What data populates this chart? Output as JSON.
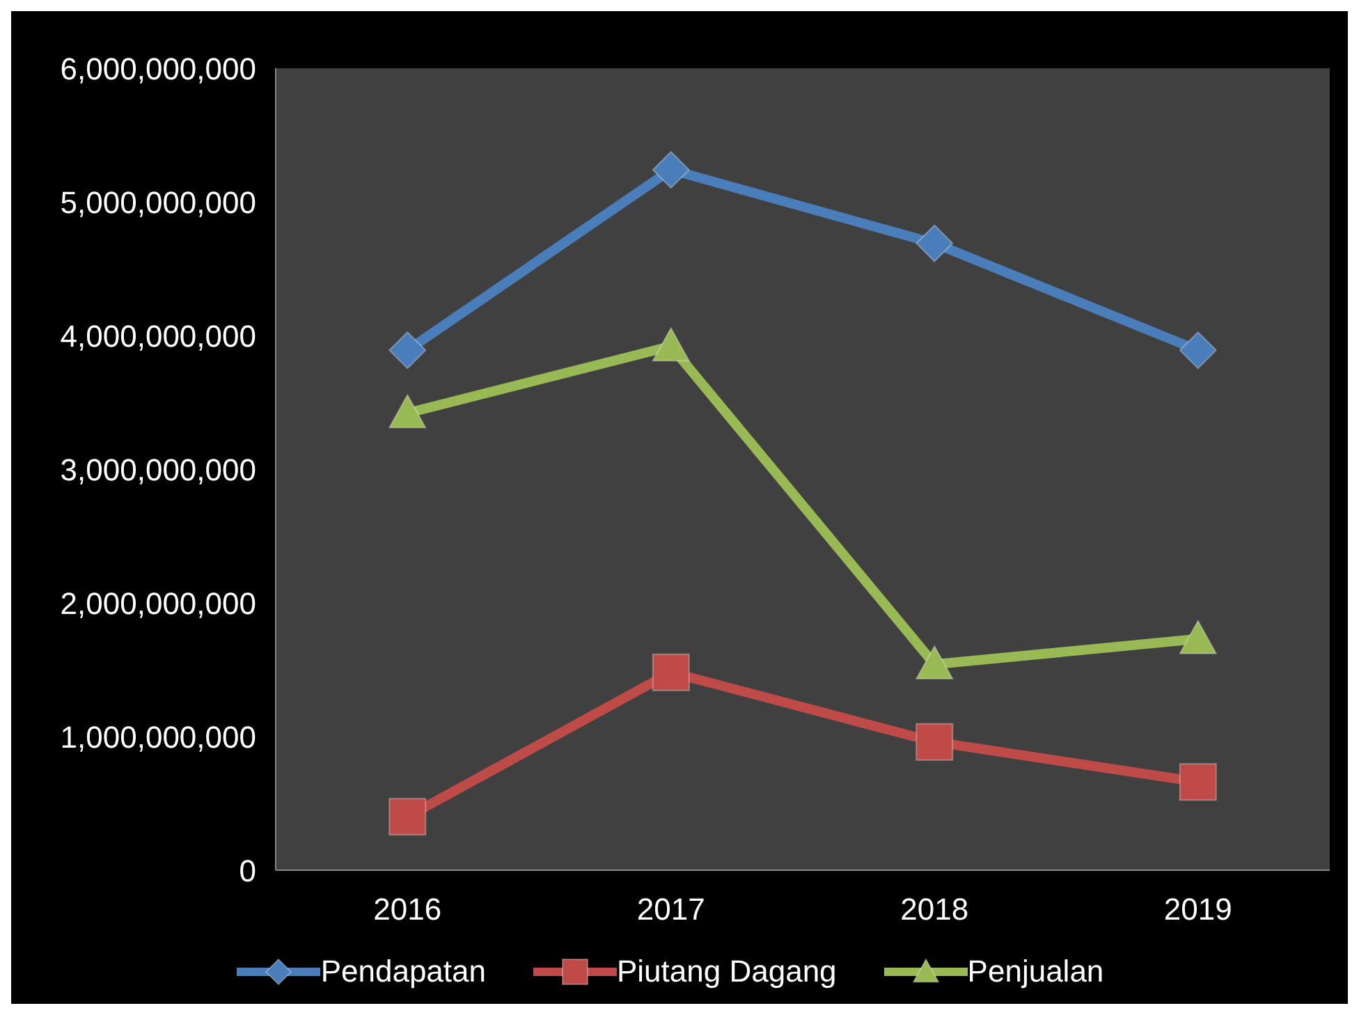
{
  "chart_data": {
    "type": "line",
    "categories": [
      "2016",
      "2017",
      "2018",
      "2019"
    ],
    "series": [
      {
        "name": "Pendapatan",
        "color": "#4a7ebb",
        "marker": "diamond",
        "values": [
          3890000000,
          5240000000,
          4690000000,
          3890000000
        ]
      },
      {
        "name": "Piutang Dagang",
        "color": "#be4b48",
        "marker": "square",
        "values": [
          400000000,
          1480000000,
          960000000,
          660000000
        ]
      },
      {
        "name": "Penjualan",
        "color": "#98b954",
        "marker": "triangle",
        "values": [
          3420000000,
          3920000000,
          1540000000,
          1730000000
        ]
      }
    ],
    "ylim": [
      0,
      6000000000
    ],
    "yticks": [
      0,
      {
        "value": 1000000000,
        "label": "1,000,000,000"
      },
      {
        "value": 2000000000,
        "label": "2,000,000,000"
      },
      {
        "value": 3000000000,
        "label": "3,000,000,000"
      },
      {
        "value": 4000000000,
        "label": "4,000,000,000"
      },
      {
        "value": 5000000000,
        "label": "5,000,000,000"
      },
      {
        "value": 6000000000,
        "label": "6,000,000,000"
      }
    ],
    "grid": false,
    "legend": "bottom",
    "line_style": "solid"
  }
}
